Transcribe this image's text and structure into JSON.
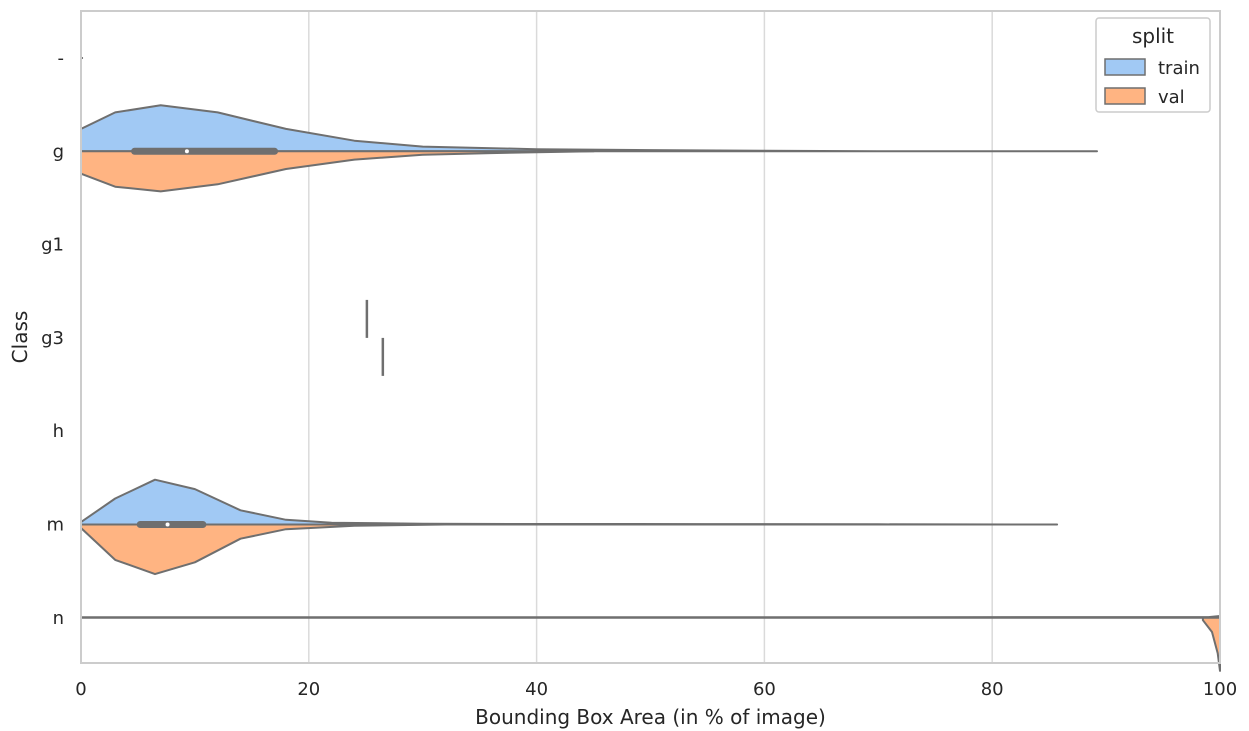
{
  "chart_data": {
    "type": "violin",
    "split": true,
    "orientation": "horizontal",
    "xlabel": "Bounding Box Area (in % of image)",
    "ylabel": "Class",
    "xlim": [
      0,
      100
    ],
    "xticks": [
      0,
      20,
      40,
      60,
      80,
      100
    ],
    "xtick_labels": [
      "0",
      "20",
      "40",
      "60",
      "80",
      "100"
    ],
    "categories": [
      "-",
      "g",
      "g1",
      "g3",
      "h",
      "m",
      "n"
    ],
    "grid": true,
    "legend": {
      "title": "split",
      "placement": "top-right",
      "entries": [
        {
          "name": "train",
          "color": "#a1c9f4"
        },
        {
          "name": "val",
          "color": "#ffb482"
        }
      ]
    },
    "series": [
      {
        "name": "train",
        "color": "#a1c9f4",
        "violins": [
          {
            "category": "-",
            "range": [
              0.0,
              0.1
            ],
            "density": [
              [
                0.0,
                0.0
              ],
              [
                0.1,
                0.0
              ]
            ]
          },
          {
            "category": "g",
            "range": [
              0,
              89.2
            ],
            "density": [
              [
                0,
                0.19
              ],
              [
                3,
                0.33
              ],
              [
                7,
                0.39
              ],
              [
                12,
                0.33
              ],
              [
                18,
                0.19
              ],
              [
                24,
                0.09
              ],
              [
                30,
                0.04
              ],
              [
                40,
                0.018
              ],
              [
                50,
                0.01
              ],
              [
                60,
                0.004
              ],
              [
                70,
                0.001
              ],
              [
                80,
                0.0005
              ],
              [
                89.2,
                0
              ]
            ]
          },
          {
            "category": "g1",
            "range": [],
            "density": []
          },
          {
            "category": "g3",
            "range": [
              25.1,
              25.1
            ],
            "density": []
          },
          {
            "category": "h",
            "range": [],
            "density": []
          },
          {
            "category": "m",
            "range": [
              0,
              85.7
            ],
            "density": [
              [
                0,
                0.02
              ],
              [
                3,
                0.22
              ],
              [
                6.5,
                0.38
              ],
              [
                10,
                0.3
              ],
              [
                14,
                0.12
              ],
              [
                18,
                0.04
              ],
              [
                22,
                0.015
              ],
              [
                30,
                0.006
              ],
              [
                40,
                0.004
              ],
              [
                55,
                0.003
              ],
              [
                70,
                0.002
              ],
              [
                85.7,
                0
              ]
            ]
          },
          {
            "category": "n",
            "range": [
              0,
              100
            ],
            "density": [
              [
                0,
                0.004
              ],
              [
                50,
                0.004
              ],
              [
                99,
                0.006
              ],
              [
                100,
                0.015
              ]
            ]
          }
        ]
      },
      {
        "name": "val",
        "color": "#ffb482",
        "violins": [
          {
            "category": "-",
            "range": [
              0.0,
              0.1
            ],
            "density": [
              [
                0.0,
                0.0
              ],
              [
                0.1,
                0.0
              ]
            ]
          },
          {
            "category": "g",
            "range": [
              0,
              45
            ],
            "density": [
              [
                0,
                0.19
              ],
              [
                3,
                0.3
              ],
              [
                7,
                0.34
              ],
              [
                12,
                0.28
              ],
              [
                18,
                0.15
              ],
              [
                24,
                0.07
              ],
              [
                30,
                0.03
              ],
              [
                36,
                0.015
              ],
              [
                45,
                0
              ]
            ]
          },
          {
            "category": "g1",
            "range": [],
            "density": []
          },
          {
            "category": "g3",
            "range": [
              26.5,
              26.5
            ],
            "density": []
          },
          {
            "category": "h",
            "range": [],
            "density": []
          },
          {
            "category": "m",
            "range": [
              0,
              32
            ],
            "density": [
              [
                0,
                0.03
              ],
              [
                3,
                0.3
              ],
              [
                6.5,
                0.42
              ],
              [
                10,
                0.32
              ],
              [
                14,
                0.12
              ],
              [
                18,
                0.04
              ],
              [
                24,
                0.01
              ],
              [
                32,
                0
              ]
            ]
          },
          {
            "category": "n",
            "range": [
              98.5,
              100
            ],
            "density": [
              [
                98.5,
                0.02
              ],
              [
                99.3,
                0.12
              ],
              [
                99.8,
                0.3
              ],
              [
                100,
                0.45
              ]
            ]
          }
        ]
      }
    ],
    "boxes": [
      {
        "category": "g",
        "q1": 4.7,
        "median": 9.3,
        "q3": 17.0
      },
      {
        "category": "m",
        "q1": 5.2,
        "median": 7.6,
        "q3": 10.7
      }
    ]
  }
}
